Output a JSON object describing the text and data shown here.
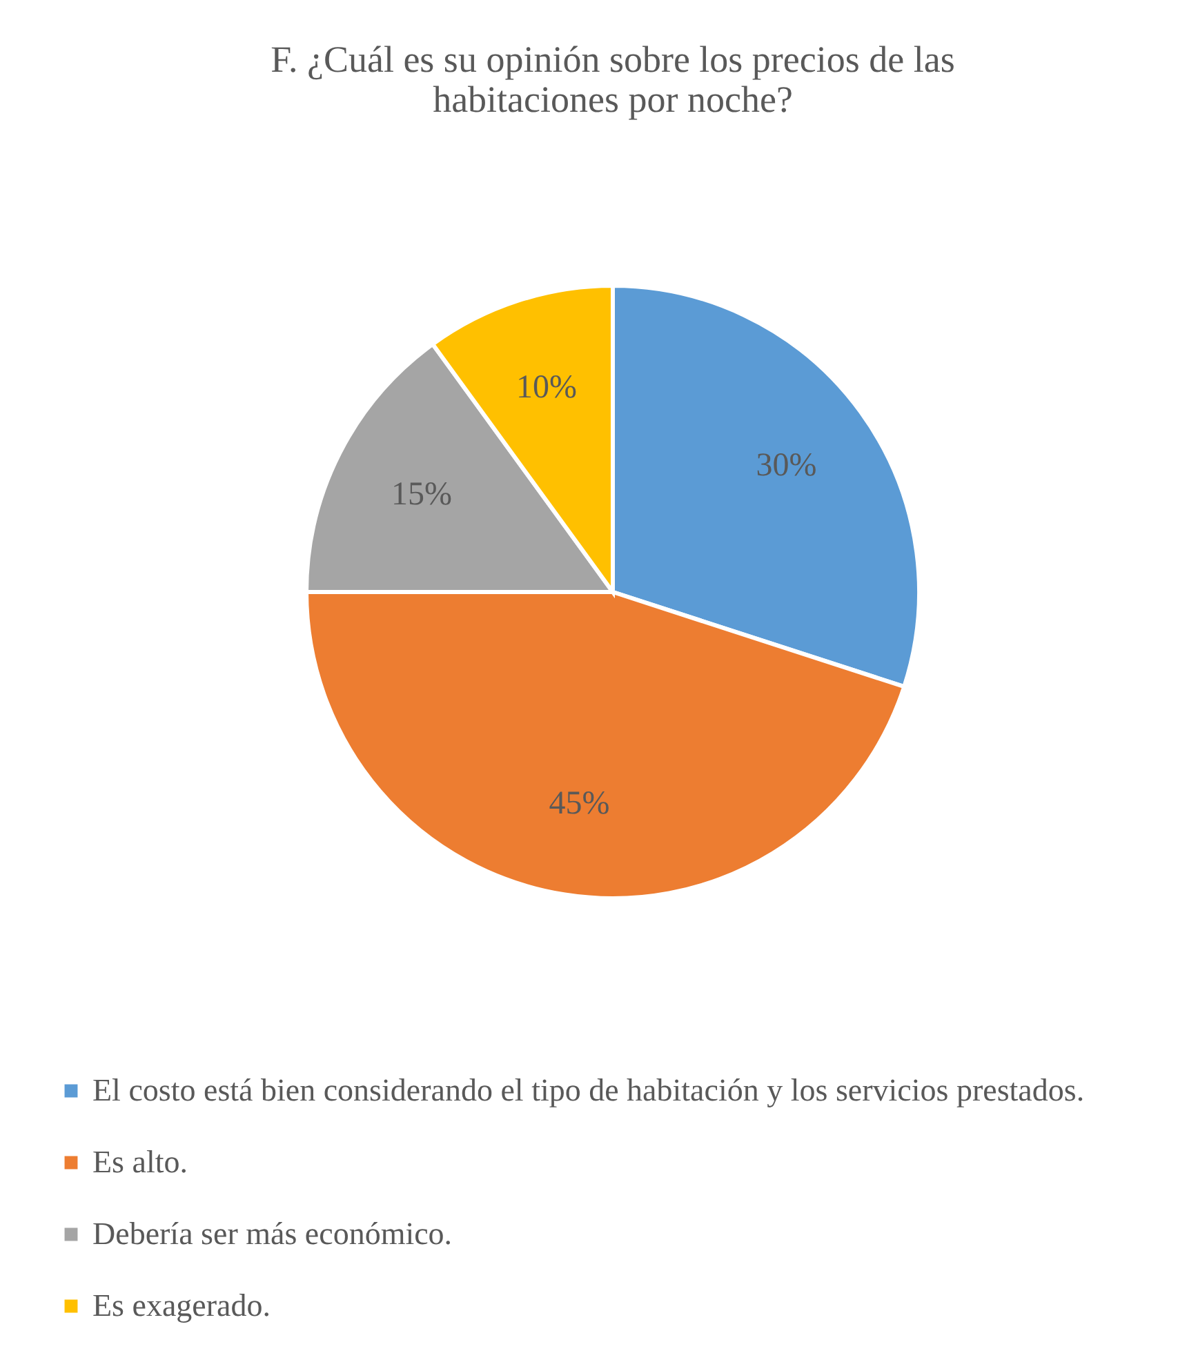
{
  "chart_data": {
    "type": "pie",
    "title": [
      "F. ¿Cuál es su opinión sobre los precios de las",
      "habitaciones por noche?"
    ],
    "categories": [
      "El costo está bien considerando el tipo de habitación y los servicios prestados.",
      "Es alto.",
      "Debería ser más económico.",
      "Es exagerado."
    ],
    "values": [
      30,
      45,
      15,
      10
    ],
    "value_labels": [
      "30%",
      "45%",
      "15%",
      "10%"
    ],
    "colors": [
      "#5b9bd5",
      "#ed7d31",
      "#a5a5a5",
      "#ffc000"
    ],
    "legend": "bottom"
  }
}
